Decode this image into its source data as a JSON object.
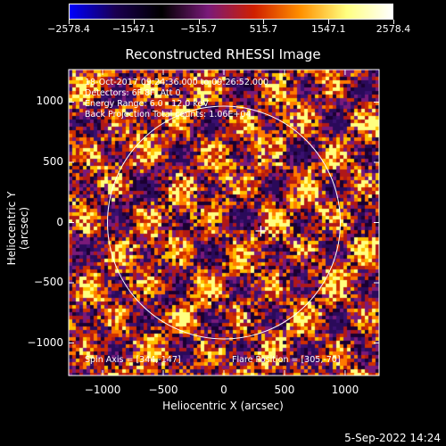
{
  "chart_data": {
    "type": "heatmap",
    "title": "Reconstructed RHESSI Image",
    "xlabel": "Heliocentric X (arcsec)",
    "ylabel": "Heliocentric Y (arcsec)",
    "xlim": [
      -1280,
      1280
    ],
    "ylim": [
      -1270,
      1270
    ],
    "xticks": [
      -1000,
      -500,
      0,
      500,
      1000
    ],
    "yticks": [
      1000,
      500,
      0,
      -500,
      -1000
    ],
    "xtick_labels": [
      "−1000",
      "−500",
      "0",
      "500",
      "1000"
    ],
    "ytick_labels": [
      "1000",
      "500",
      "0",
      "−500",
      "−1000"
    ],
    "colorbar": {
      "ticks": [
        -2578.4,
        -1547.1,
        -515.7,
        515.7,
        1547.1,
        2578.4
      ],
      "labels": [
        "−2578.4",
        "−1547.1",
        "−515.7",
        "515.7",
        "1547.1",
        "2578.4"
      ],
      "colors": [
        "#0000ff",
        "#1a0050",
        "#000000",
        "#7a1a7a",
        "#d02000",
        "#ff9000",
        "#ffff80",
        "#ffffff"
      ]
    },
    "solar_limb_radius_arcsec": 960,
    "flare_position": [
      305,
      -70
    ],
    "annotations": {
      "time_range": "18-Oct-2017 09:24:36.000 to 09:26:52.000",
      "detectors": "Detectors: 6F 8F, Att 0",
      "energy": "Energy Range: 6.0 - 12.0 keV",
      "method": "Back Projection    Total counts: 1.06E+04",
      "spin_axis": "Spin Axis = [344,-147]",
      "flare": "Flare Position = [305,-70]"
    }
  },
  "footer": {
    "timestamp": "5-Sep-2022 14:24"
  }
}
